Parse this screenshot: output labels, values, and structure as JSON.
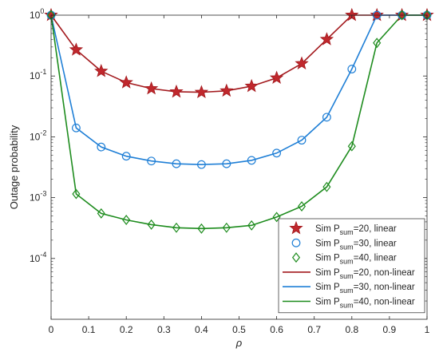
{
  "chart_data": {
    "type": "line",
    "title": "",
    "xlabel": "ρ",
    "ylabel": "Outage probability",
    "xscale": "linear",
    "yscale": "log",
    "xlim": [
      0,
      1
    ],
    "ylim": [
      1e-05,
      1
    ],
    "grid": false,
    "legend_position": "bottom-right",
    "x_ticks": [
      "0",
      "0.1",
      "0.2",
      "0.3",
      "0.4",
      "0.5",
      "0.6",
      "0.7",
      "0.8",
      "0.9",
      "1"
    ],
    "x_tick_values": [
      0,
      0.1,
      0.2,
      0.3,
      0.4,
      0.5,
      0.6,
      0.7,
      0.8,
      0.9,
      1
    ],
    "y_ticks": [
      {
        "base": "10",
        "exp": "0",
        "value": 1
      },
      {
        "base": "10",
        "exp": "-1",
        "value": 0.1
      },
      {
        "base": "10",
        "exp": "-2",
        "value": 0.01
      },
      {
        "base": "10",
        "exp": "-3",
        "value": 0.001
      },
      {
        "base": "10",
        "exp": "-4",
        "value": 0.0001
      }
    ],
    "series": [
      {
        "legend": {
          "pre": "Sim P",
          "sub": "sum",
          "post": "=20, linear"
        },
        "kind": "markers",
        "marker": "star",
        "color": "#a3191d",
        "face": "#c0282d",
        "x": [
          0,
          0.0667,
          0.1333,
          0.2,
          0.2667,
          0.3333,
          0.4,
          0.4667,
          0.5333,
          0.6,
          0.6667,
          0.7333,
          0.8,
          0.8667,
          0.9333,
          1
        ],
        "y": [
          1,
          0.27,
          0.12,
          0.078,
          0.062,
          0.055,
          0.054,
          0.057,
          0.068,
          0.093,
          0.16,
          0.4,
          1,
          1,
          1,
          1
        ]
      },
      {
        "legend": {
          "pre": "Sim P",
          "sub": "sum",
          "post": "=30, linear"
        },
        "kind": "markers",
        "marker": "circle",
        "color": "#1f7fd6",
        "face": "none",
        "x": [
          0,
          0.0667,
          0.1333,
          0.2,
          0.2667,
          0.3333,
          0.4,
          0.4667,
          0.5333,
          0.6,
          0.6667,
          0.7333,
          0.8,
          0.8667,
          0.9333,
          1
        ],
        "y": [
          1,
          0.014,
          0.0068,
          0.0048,
          0.004,
          0.0036,
          0.0035,
          0.0036,
          0.0041,
          0.0054,
          0.0088,
          0.021,
          0.13,
          1,
          1,
          1
        ]
      },
      {
        "legend": {
          "pre": "Sim P",
          "sub": "sum",
          "post": "=40, linear"
        },
        "kind": "markers",
        "marker": "diamond",
        "color": "#1e8c1e",
        "face": "none",
        "x": [
          0,
          0.0667,
          0.1333,
          0.2,
          0.2667,
          0.3333,
          0.4,
          0.4667,
          0.5333,
          0.6,
          0.6667,
          0.7333,
          0.8,
          0.8667,
          0.9333,
          1
        ],
        "y": [
          1,
          0.00115,
          0.00055,
          0.00043,
          0.00036,
          0.00032,
          0.00031,
          0.00032,
          0.00035,
          0.00048,
          0.00072,
          0.0015,
          0.007,
          0.35,
          1,
          1
        ]
      },
      {
        "legend": {
          "pre": "Sim P",
          "sub": "sum",
          "post": "=20, non-linear"
        },
        "kind": "line",
        "color": "#a3191d",
        "x": [
          0,
          0.0667,
          0.1333,
          0.2,
          0.2667,
          0.3333,
          0.4,
          0.4667,
          0.5333,
          0.6,
          0.6667,
          0.7333,
          0.8,
          0.8667,
          0.9333,
          1
        ],
        "y": [
          1,
          0.27,
          0.12,
          0.078,
          0.062,
          0.055,
          0.054,
          0.057,
          0.068,
          0.093,
          0.16,
          0.4,
          1,
          1,
          1,
          1
        ]
      },
      {
        "legend": {
          "pre": "Sim P",
          "sub": "sum",
          "post": "=30, non-linear"
        },
        "kind": "line",
        "color": "#1f7fd6",
        "x": [
          0,
          0.0667,
          0.1333,
          0.2,
          0.2667,
          0.3333,
          0.4,
          0.4667,
          0.5333,
          0.6,
          0.6667,
          0.7333,
          0.8,
          0.8667,
          0.9333,
          1
        ],
        "y": [
          1,
          0.014,
          0.0068,
          0.0048,
          0.004,
          0.0036,
          0.0035,
          0.0036,
          0.0041,
          0.0054,
          0.0088,
          0.021,
          0.13,
          1,
          1,
          1
        ]
      },
      {
        "legend": {
          "pre": "Sim P",
          "sub": "sum",
          "post": "=40, non-linear"
        },
        "kind": "line",
        "color": "#1e8c1e",
        "x": [
          0,
          0.0667,
          0.1333,
          0.2,
          0.2667,
          0.3333,
          0.4,
          0.4667,
          0.5333,
          0.6,
          0.6667,
          0.7333,
          0.8,
          0.8667,
          0.9333,
          1
        ],
        "y": [
          1,
          0.00115,
          0.00055,
          0.00043,
          0.00036,
          0.00032,
          0.00031,
          0.00032,
          0.00035,
          0.00048,
          0.00072,
          0.0015,
          0.007,
          0.35,
          1,
          1
        ]
      }
    ]
  }
}
